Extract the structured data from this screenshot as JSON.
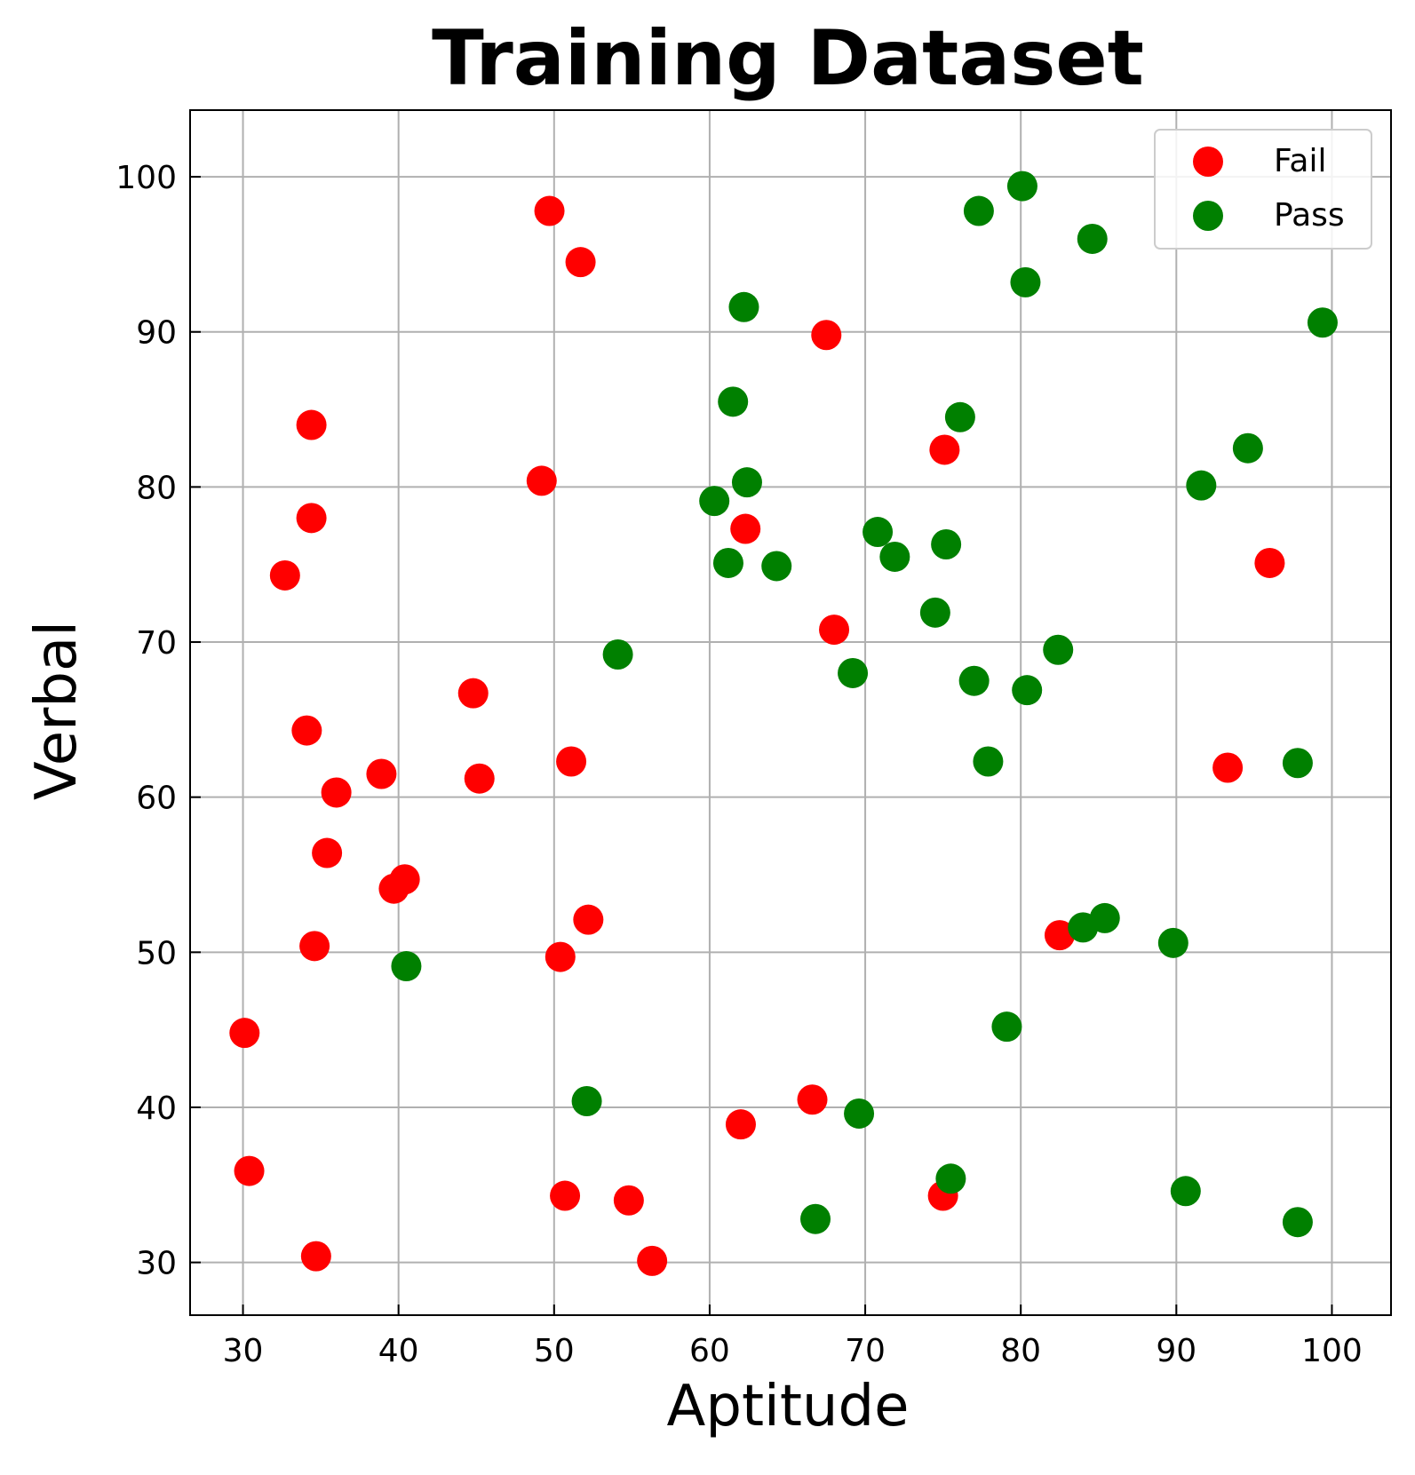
{
  "chart_data": {
    "type": "scatter",
    "title": "Training Dataset",
    "xlabel": "Aptitude",
    "ylabel": "Verbal",
    "xlim": [
      26.6,
      103.8
    ],
    "ylim": [
      26.6,
      104.3
    ],
    "xticks": [
      30,
      40,
      50,
      60,
      70,
      80,
      90,
      100
    ],
    "yticks": [
      30,
      40,
      50,
      60,
      70,
      80,
      90,
      100
    ],
    "grid": true,
    "legend_position": "top-right",
    "series": [
      {
        "name": "Fail",
        "color": "#ff0000",
        "points": [
          [
            49.7,
            97.8
          ],
          [
            51.7,
            94.5
          ],
          [
            67.5,
            89.8
          ],
          [
            34.4,
            84.0
          ],
          [
            75.1,
            82.4
          ],
          [
            49.2,
            80.4
          ],
          [
            34.4,
            78.0
          ],
          [
            62.3,
            77.3
          ],
          [
            96.0,
            75.1
          ],
          [
            32.7,
            74.3
          ],
          [
            68.0,
            70.8
          ],
          [
            44.8,
            66.7
          ],
          [
            34.1,
            64.3
          ],
          [
            51.1,
            62.3
          ],
          [
            38.9,
            61.5
          ],
          [
            45.2,
            61.2
          ],
          [
            93.3,
            61.9
          ],
          [
            36.0,
            60.3
          ],
          [
            35.4,
            56.4
          ],
          [
            40.4,
            54.7
          ],
          [
            39.7,
            54.1
          ],
          [
            52.2,
            52.1
          ],
          [
            82.5,
            51.1
          ],
          [
            34.6,
            50.4
          ],
          [
            50.4,
            49.7
          ],
          [
            30.1,
            44.8
          ],
          [
            66.6,
            40.5
          ],
          [
            62.0,
            38.9
          ],
          [
            30.4,
            35.9
          ],
          [
            50.7,
            34.3
          ],
          [
            54.8,
            34.0
          ],
          [
            75.0,
            34.3
          ],
          [
            34.7,
            30.4
          ],
          [
            56.3,
            30.1
          ]
        ]
      },
      {
        "name": "Pass",
        "color": "#008000",
        "points": [
          [
            80.1,
            99.4
          ],
          [
            77.3,
            97.8
          ],
          [
            84.6,
            96.0
          ],
          [
            80.3,
            93.2
          ],
          [
            62.2,
            91.6
          ],
          [
            99.4,
            90.6
          ],
          [
            61.5,
            85.5
          ],
          [
            76.1,
            84.5
          ],
          [
            94.6,
            82.5
          ],
          [
            62.4,
            80.3
          ],
          [
            91.6,
            80.1
          ],
          [
            60.3,
            79.1
          ],
          [
            70.8,
            77.1
          ],
          [
            75.2,
            76.3
          ],
          [
            71.9,
            75.5
          ],
          [
            61.2,
            75.1
          ],
          [
            64.3,
            74.9
          ],
          [
            74.5,
            71.9
          ],
          [
            54.1,
            69.2
          ],
          [
            82.4,
            69.5
          ],
          [
            69.2,
            68.0
          ],
          [
            77.0,
            67.5
          ],
          [
            80.4,
            66.9
          ],
          [
            77.9,
            62.3
          ],
          [
            97.8,
            62.2
          ],
          [
            85.4,
            52.2
          ],
          [
            84.0,
            51.6
          ],
          [
            89.8,
            50.6
          ],
          [
            40.5,
            49.1
          ],
          [
            79.1,
            45.2
          ],
          [
            52.1,
            40.4
          ],
          [
            69.6,
            39.6
          ],
          [
            75.5,
            35.4
          ],
          [
            90.6,
            34.6
          ],
          [
            66.8,
            32.8
          ],
          [
            97.8,
            32.6
          ]
        ]
      }
    ]
  }
}
